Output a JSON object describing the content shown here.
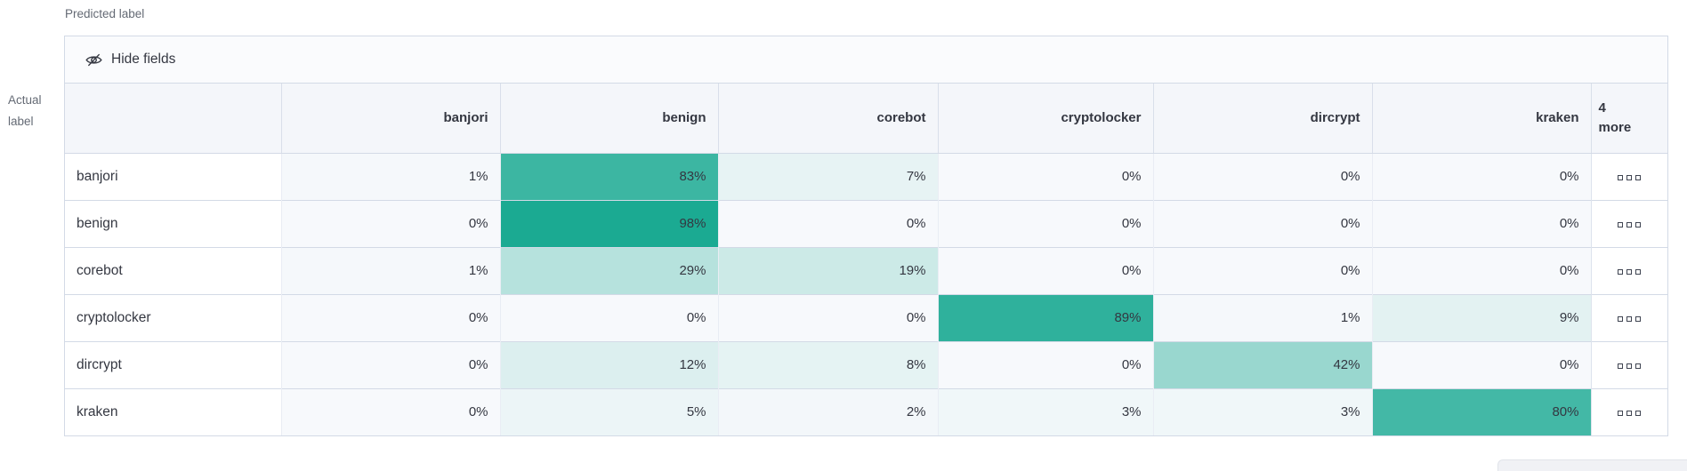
{
  "axes": {
    "predicted_label": "Predicted label",
    "actual_label": "Actual label"
  },
  "toolbar": {
    "hide_fields": "Hide fields"
  },
  "icons": {
    "hide_fields": "eye-closed-icon",
    "more_cell": "boxes-horizontal-icon"
  },
  "chart_data": {
    "type": "heatmap",
    "subtype": "confusion-matrix",
    "columns": [
      "banjori",
      "benign",
      "corebot",
      "cryptolocker",
      "dircrypt",
      "kraken"
    ],
    "hidden_columns_label": "4 more",
    "rows": [
      "banjori",
      "benign",
      "corebot",
      "cryptolocker",
      "dircrypt",
      "kraken"
    ],
    "unit": "%",
    "values_percent": [
      [
        1,
        83,
        7,
        0,
        0,
        0
      ],
      [
        0,
        98,
        0,
        0,
        0,
        0
      ],
      [
        1,
        29,
        19,
        0,
        0,
        0
      ],
      [
        0,
        0,
        0,
        89,
        1,
        9
      ],
      [
        0,
        12,
        8,
        0,
        42,
        0
      ],
      [
        0,
        5,
        2,
        3,
        3,
        80
      ]
    ],
    "legend": "cell shading encodes percentage from near-white (0%) to teal (100%)",
    "colors": {
      "max": "#16a890",
      "zero_bg": "#f7f9fc"
    }
  }
}
